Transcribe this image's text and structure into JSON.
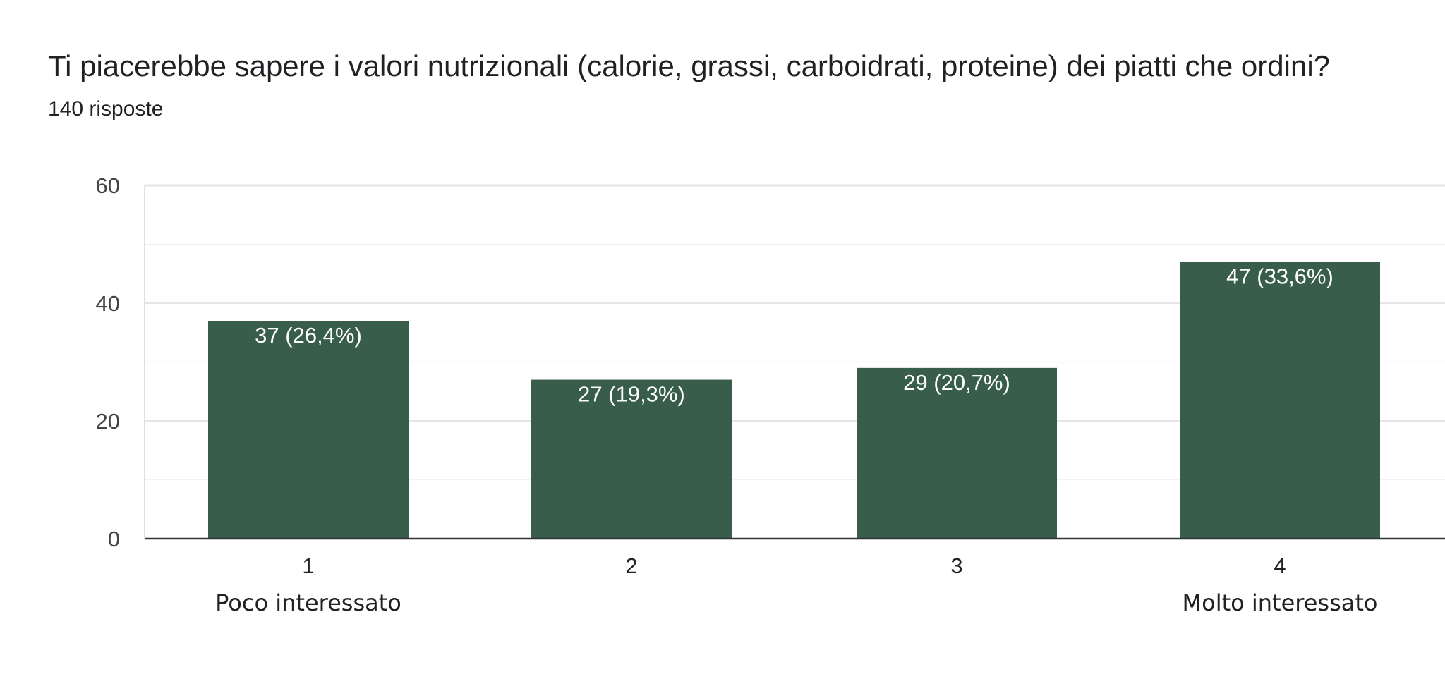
{
  "title": "Ti piacerebbe sapere i valori nutrizionali (calorie, grassi, carboidrati, proteine) dei piatti che ordini?",
  "subtitle": "140 risposte",
  "chart_data": {
    "type": "bar",
    "categories": [
      "1",
      "2",
      "3",
      "4"
    ],
    "category_sublabels": [
      "Poco interessato",
      "",
      "",
      "Molto interessato"
    ],
    "values": [
      37,
      27,
      29,
      47
    ],
    "data_labels": [
      "37 (26,4%)",
      "27 (19,3%)",
      "29 (20,7%)",
      "47 (33,6%)"
    ],
    "ylim": [
      0,
      60
    ],
    "yticks": [
      0,
      20,
      40,
      60
    ],
    "grid": true,
    "bar_color": "#385d4a"
  }
}
